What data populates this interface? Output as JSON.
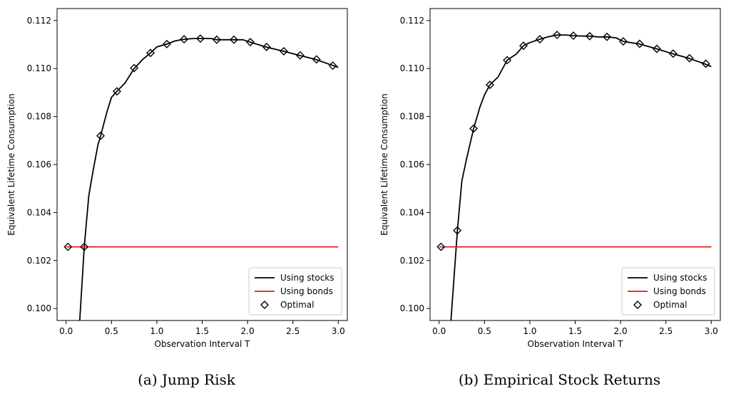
{
  "chart_data": [
    {
      "type": "line",
      "caption": "(a) Jump Risk",
      "xlabel": "Observation Interval T",
      "ylabel": "Equivalent Lifetime Consumption",
      "xlim": [
        -0.1,
        3.1
      ],
      "ylim": [
        0.0995,
        0.1125
      ],
      "xticks": [
        0.0,
        0.5,
        1.0,
        1.5,
        2.0,
        2.5,
        3.0
      ],
      "yticks": [
        0.1,
        0.102,
        0.104,
        0.106,
        0.108,
        0.11,
        0.112
      ],
      "grid": false,
      "legend": "bottom-right",
      "series": [
        {
          "name": "Using stocks",
          "color": "#000000",
          "style": "line",
          "x": [
            0.15,
            0.2,
            0.25,
            0.3,
            0.35,
            0.38,
            0.45,
            0.5,
            0.56,
            0.65,
            0.75,
            0.85,
            0.93,
            1.0,
            1.11,
            1.2,
            1.3,
            1.4,
            1.48,
            1.6,
            1.66,
            1.75,
            1.85,
            1.95,
            2.03,
            2.2,
            2.4,
            2.57,
            2.75,
            2.9,
            3.0
          ],
          "y": [
            0.0995,
            0.1026,
            0.1047,
            0.1058,
            0.1068,
            0.1072,
            0.1082,
            0.1088,
            0.10905,
            0.1094,
            0.11,
            0.1104,
            0.11065,
            0.1109,
            0.11102,
            0.11115,
            0.11122,
            0.11125,
            0.11125,
            0.11125,
            0.1112,
            0.1112,
            0.1112,
            0.1112,
            0.1111,
            0.1109,
            0.11072,
            0.11055,
            0.11038,
            0.11018,
            0.11005
          ]
        },
        {
          "name": "Using bonds",
          "color": "#e41a1c",
          "style": "line",
          "x": [
            0.0,
            3.0
          ],
          "y": [
            0.10257,
            0.10257
          ]
        },
        {
          "name": "Optimal",
          "color": "#000000",
          "style": "marker-diamond",
          "x": [
            0.02,
            0.2,
            0.38,
            0.56,
            0.75,
            0.93,
            1.11,
            1.3,
            1.48,
            1.66,
            1.85,
            2.03,
            2.21,
            2.4,
            2.58,
            2.76,
            2.94
          ],
          "y": [
            0.10257,
            0.10257,
            0.1072,
            0.10905,
            0.11002,
            0.11065,
            0.11102,
            0.11122,
            0.11125,
            0.1112,
            0.1112,
            0.1111,
            0.1109,
            0.11072,
            0.11055,
            0.11038,
            0.11012
          ]
        }
      ]
    },
    {
      "type": "line",
      "caption": "(b) Empirical Stock Returns",
      "xlabel": "Observation Interval T",
      "ylabel": "Equivalent Lifetime Consumption",
      "xlim": [
        -0.1,
        3.1
      ],
      "ylim": [
        0.0995,
        0.1125
      ],
      "xticks": [
        0.0,
        0.5,
        1.0,
        1.5,
        2.0,
        2.5,
        3.0
      ],
      "yticks": [
        0.1,
        0.102,
        0.104,
        0.106,
        0.108,
        0.11,
        0.112
      ],
      "grid": false,
      "legend": "bottom-right",
      "series": [
        {
          "name": "Using stocks",
          "color": "#000000",
          "style": "line",
          "x": [
            0.13,
            0.2,
            0.25,
            0.3,
            0.38,
            0.45,
            0.5,
            0.56,
            0.65,
            0.75,
            0.85,
            0.93,
            1.0,
            1.11,
            1.2,
            1.3,
            1.4,
            1.48,
            1.6,
            1.66,
            1.75,
            1.85,
            1.95,
            2.03,
            2.2,
            2.4,
            2.57,
            2.75,
            2.94,
            3.0
          ],
          "y": [
            0.0995,
            0.1032,
            0.1053,
            0.1062,
            0.1075,
            0.1084,
            0.1089,
            0.10932,
            0.10965,
            0.11035,
            0.1106,
            0.11095,
            0.11108,
            0.11122,
            0.11132,
            0.1114,
            0.1114,
            0.11137,
            0.11135,
            0.11135,
            0.11132,
            0.11132,
            0.11128,
            0.11113,
            0.11103,
            0.11082,
            0.11062,
            0.11043,
            0.11018,
            0.11008
          ]
        },
        {
          "name": "Using bonds",
          "color": "#e41a1c",
          "style": "line",
          "x": [
            0.0,
            3.0
          ],
          "y": [
            0.10257,
            0.10257
          ]
        },
        {
          "name": "Optimal",
          "color": "#000000",
          "style": "marker-diamond",
          "x": [
            0.02,
            0.2,
            0.38,
            0.56,
            0.75,
            0.93,
            1.11,
            1.3,
            1.48,
            1.66,
            1.85,
            2.03,
            2.21,
            2.4,
            2.58,
            2.76,
            2.94
          ],
          "y": [
            0.10257,
            0.10325,
            0.1075,
            0.10932,
            0.11035,
            0.11095,
            0.11122,
            0.1114,
            0.11137,
            0.11135,
            0.11132,
            0.11113,
            0.11103,
            0.11082,
            0.11062,
            0.11043,
            0.1102
          ]
        }
      ]
    }
  ]
}
